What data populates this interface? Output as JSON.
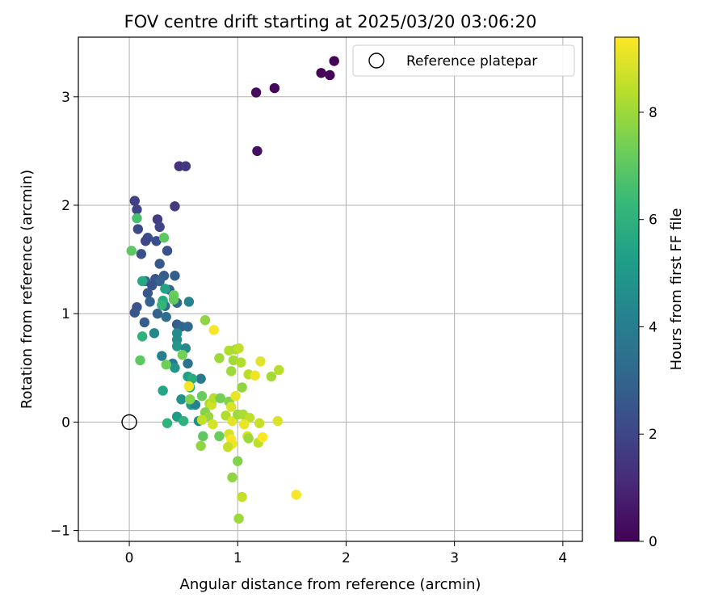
{
  "chart_data": {
    "type": "scatter",
    "title": "FOV centre drift starting at 2025/03/20 03:06:20",
    "xlabel": "Angular distance from reference (arcmin)",
    "ylabel": "Rotation from reference (arcmin)",
    "xlim": [
      -0.47,
      4.18
    ],
    "ylim": [
      -1.1,
      3.55
    ],
    "xticks": [
      0,
      1,
      2,
      3,
      4
    ],
    "yticks": [
      -1,
      0,
      1,
      2,
      3
    ],
    "grid": true,
    "legend": {
      "location": "upper right",
      "entries": [
        "Reference platepar"
      ]
    },
    "reference": {
      "name": "Reference platepar",
      "x": 0,
      "y": 0,
      "marker": "open-circle"
    },
    "colorbar": {
      "label": "Hours from first FF file",
      "colormap": "viridis",
      "min": 0,
      "max": 9.4,
      "ticks": [
        0,
        2,
        4,
        6,
        8
      ]
    },
    "points": [
      {
        "x": 1.89,
        "y": 3.33,
        "h": 0.05
      },
      {
        "x": 1.77,
        "y": 3.22,
        "h": 0.1
      },
      {
        "x": 1.85,
        "y": 3.2,
        "h": 0.15
      },
      {
        "x": 1.34,
        "y": 3.08,
        "h": 0.2
      },
      {
        "x": 1.17,
        "y": 3.04,
        "h": 0.3
      },
      {
        "x": 1.18,
        "y": 2.5,
        "h": 0.4
      },
      {
        "x": 0.46,
        "y": 2.36,
        "h": 1.4
      },
      {
        "x": 0.52,
        "y": 2.36,
        "h": 1.5
      },
      {
        "x": 0.42,
        "y": 1.99,
        "h": 1.6
      },
      {
        "x": 0.05,
        "y": 2.04,
        "h": 1.8
      },
      {
        "x": 0.07,
        "y": 1.96,
        "h": 1.9
      },
      {
        "x": 0.26,
        "y": 1.87,
        "h": 1.7
      },
      {
        "x": 0.28,
        "y": 1.8,
        "h": 2.0
      },
      {
        "x": 0.08,
        "y": 1.78,
        "h": 2.1
      },
      {
        "x": 0.17,
        "y": 1.7,
        "h": 2.2
      },
      {
        "x": 0.15,
        "y": 1.67,
        "h": 2.0
      },
      {
        "x": 0.25,
        "y": 1.67,
        "h": 2.3
      },
      {
        "x": 0.35,
        "y": 1.58,
        "h": 2.4
      },
      {
        "x": 0.11,
        "y": 1.55,
        "h": 2.3
      },
      {
        "x": 0.28,
        "y": 1.46,
        "h": 2.6
      },
      {
        "x": 0.42,
        "y": 1.35,
        "h": 2.8
      },
      {
        "x": 0.24,
        "y": 1.32,
        "h": 2.5
      },
      {
        "x": 0.32,
        "y": 1.35,
        "h": 2.7
      },
      {
        "x": 0.15,
        "y": 1.3,
        "h": 3.2
      },
      {
        "x": 0.28,
        "y": 1.3,
        "h": 2.9
      },
      {
        "x": 0.21,
        "y": 1.26,
        "h": 2.4
      },
      {
        "x": 0.17,
        "y": 1.19,
        "h": 2.6
      },
      {
        "x": 0.37,
        "y": 1.22,
        "h": 3.0
      },
      {
        "x": 0.44,
        "y": 1.1,
        "h": 3.1
      },
      {
        "x": 0.19,
        "y": 1.11,
        "h": 2.9
      },
      {
        "x": 0.33,
        "y": 1.07,
        "h": 3.3
      },
      {
        "x": 0.07,
        "y": 1.06,
        "h": 2.5
      },
      {
        "x": 0.05,
        "y": 1.01,
        "h": 2.6
      },
      {
        "x": 0.26,
        "y": 1.0,
        "h": 2.9
      },
      {
        "x": 0.34,
        "y": 0.97,
        "h": 3.4
      },
      {
        "x": 0.14,
        "y": 0.92,
        "h": 2.8
      },
      {
        "x": 0.44,
        "y": 0.9,
        "h": 2.7
      },
      {
        "x": 0.48,
        "y": 0.88,
        "h": 3.0
      },
      {
        "x": 0.54,
        "y": 0.88,
        "h": 3.2
      },
      {
        "x": 0.55,
        "y": 1.11,
        "h": 4.2
      },
      {
        "x": 0.44,
        "y": 0.82,
        "h": 4.5
      },
      {
        "x": 0.23,
        "y": 0.82,
        "h": 4.3
      },
      {
        "x": 0.44,
        "y": 0.76,
        "h": 4.6
      },
      {
        "x": 0.44,
        "y": 0.7,
        "h": 5.0
      },
      {
        "x": 0.52,
        "y": 0.68,
        "h": 4.4
      },
      {
        "x": 0.3,
        "y": 0.61,
        "h": 4.0
      },
      {
        "x": 0.4,
        "y": 0.54,
        "h": 3.8
      },
      {
        "x": 0.54,
        "y": 0.54,
        "h": 3.6
      },
      {
        "x": 0.42,
        "y": 0.5,
        "h": 4.9
      },
      {
        "x": 0.66,
        "y": 0.4,
        "h": 3.8
      },
      {
        "x": 0.54,
        "y": 0.42,
        "h": 5.3
      },
      {
        "x": 0.58,
        "y": 0.4,
        "h": 5.8
      },
      {
        "x": 0.56,
        "y": 0.32,
        "h": 5.6
      },
      {
        "x": 0.31,
        "y": 0.29,
        "h": 5.5
      },
      {
        "x": 0.48,
        "y": 0.21,
        "h": 4.8
      },
      {
        "x": 0.57,
        "y": 0.16,
        "h": 5.0
      },
      {
        "x": 0.61,
        "y": 0.16,
        "h": 4.2
      },
      {
        "x": 0.44,
        "y": 0.05,
        "h": 5.1
      },
      {
        "x": 0.64,
        "y": 0.01,
        "h": 4.6
      },
      {
        "x": 0.35,
        "y": -0.01,
        "h": 6.1
      },
      {
        "x": 0.5,
        "y": 0.01,
        "h": 6.0
      },
      {
        "x": 0.32,
        "y": 1.7,
        "h": 7.0
      },
      {
        "x": 0.07,
        "y": 1.88,
        "h": 6.6
      },
      {
        "x": 0.02,
        "y": 1.58,
        "h": 7.0
      },
      {
        "x": 0.12,
        "y": 1.3,
        "h": 5.6
      },
      {
        "x": 0.33,
        "y": 1.23,
        "h": 5.4
      },
      {
        "x": 0.31,
        "y": 1.12,
        "h": 5.7
      },
      {
        "x": 0.3,
        "y": 1.08,
        "h": 6.2
      },
      {
        "x": 0.41,
        "y": 1.17,
        "h": 7.2
      },
      {
        "x": 0.41,
        "y": 1.13,
        "h": 7.1
      },
      {
        "x": 0.12,
        "y": 0.79,
        "h": 6.0
      },
      {
        "x": 0.1,
        "y": 0.57,
        "h": 7.0
      },
      {
        "x": 0.34,
        "y": 0.53,
        "h": 7.3
      },
      {
        "x": 0.49,
        "y": 0.62,
        "h": 7.4
      },
      {
        "x": 0.7,
        "y": 0.94,
        "h": 7.8
      },
      {
        "x": 0.78,
        "y": 0.85,
        "h": 9.3
      },
      {
        "x": 0.83,
        "y": 0.59,
        "h": 8.0
      },
      {
        "x": 0.92,
        "y": 0.66,
        "h": 8.3
      },
      {
        "x": 0.98,
        "y": 0.67,
        "h": 8.2
      },
      {
        "x": 1.01,
        "y": 0.68,
        "h": 8.5
      },
      {
        "x": 1.21,
        "y": 0.56,
        "h": 9.0
      },
      {
        "x": 0.96,
        "y": 0.57,
        "h": 8.1
      },
      {
        "x": 1.03,
        "y": 0.55,
        "h": 8.3
      },
      {
        "x": 0.94,
        "y": 0.47,
        "h": 8.0
      },
      {
        "x": 1.1,
        "y": 0.44,
        "h": 8.4
      },
      {
        "x": 1.16,
        "y": 0.43,
        "h": 9.2
      },
      {
        "x": 1.31,
        "y": 0.42,
        "h": 8.1
      },
      {
        "x": 1.38,
        "y": 0.48,
        "h": 8.4
      },
      {
        "x": 1.04,
        "y": 0.32,
        "h": 7.8
      },
      {
        "x": 0.55,
        "y": 0.33,
        "h": 9.3
      },
      {
        "x": 0.56,
        "y": 0.21,
        "h": 7.6
      },
      {
        "x": 0.67,
        "y": 0.24,
        "h": 7.2
      },
      {
        "x": 0.74,
        "y": 0.17,
        "h": 8.2
      },
      {
        "x": 0.76,
        "y": 0.16,
        "h": 8.7
      },
      {
        "x": 0.78,
        "y": 0.22,
        "h": 8.4
      },
      {
        "x": 0.84,
        "y": 0.22,
        "h": 7.4
      },
      {
        "x": 0.92,
        "y": 0.19,
        "h": 7.6
      },
      {
        "x": 0.98,
        "y": 0.24,
        "h": 9.1
      },
      {
        "x": 0.94,
        "y": 0.14,
        "h": 8.9
      },
      {
        "x": 0.7,
        "y": 0.09,
        "h": 7.6
      },
      {
        "x": 0.73,
        "y": 0.05,
        "h": 7.9
      },
      {
        "x": 0.67,
        "y": 0.02,
        "h": 8.5
      },
      {
        "x": 0.77,
        "y": -0.02,
        "h": 8.8
      },
      {
        "x": 0.89,
        "y": 0.06,
        "h": 8.3
      },
      {
        "x": 0.95,
        "y": 0.01,
        "h": 9.0
      },
      {
        "x": 1.0,
        "y": 0.07,
        "h": 8.0
      },
      {
        "x": 1.05,
        "y": 0.07,
        "h": 8.2
      },
      {
        "x": 1.11,
        "y": 0.04,
        "h": 8.5
      },
      {
        "x": 1.2,
        "y": -0.01,
        "h": 8.6
      },
      {
        "x": 1.06,
        "y": -0.02,
        "h": 9.1
      },
      {
        "x": 1.37,
        "y": 0.01,
        "h": 8.9
      },
      {
        "x": 0.92,
        "y": -0.11,
        "h": 8.8
      },
      {
        "x": 0.94,
        "y": -0.16,
        "h": 9.3
      },
      {
        "x": 0.95,
        "y": -0.2,
        "h": 9.2
      },
      {
        "x": 0.91,
        "y": -0.23,
        "h": 8.6
      },
      {
        "x": 1.09,
        "y": -0.13,
        "h": 8.8
      },
      {
        "x": 1.1,
        "y": -0.15,
        "h": 8.0
      },
      {
        "x": 1.19,
        "y": -0.19,
        "h": 8.5
      },
      {
        "x": 1.23,
        "y": -0.14,
        "h": 9.4
      },
      {
        "x": 0.68,
        "y": -0.13,
        "h": 7.0
      },
      {
        "x": 0.66,
        "y": -0.22,
        "h": 7.8
      },
      {
        "x": 0.83,
        "y": -0.13,
        "h": 7.2
      },
      {
        "x": 1.0,
        "y": -0.36,
        "h": 7.6
      },
      {
        "x": 0.95,
        "y": -0.51,
        "h": 7.8
      },
      {
        "x": 1.04,
        "y": -0.69,
        "h": 8.6
      },
      {
        "x": 1.01,
        "y": -0.89,
        "h": 8.0
      },
      {
        "x": 1.54,
        "y": -0.67,
        "h": 9.3
      }
    ]
  }
}
